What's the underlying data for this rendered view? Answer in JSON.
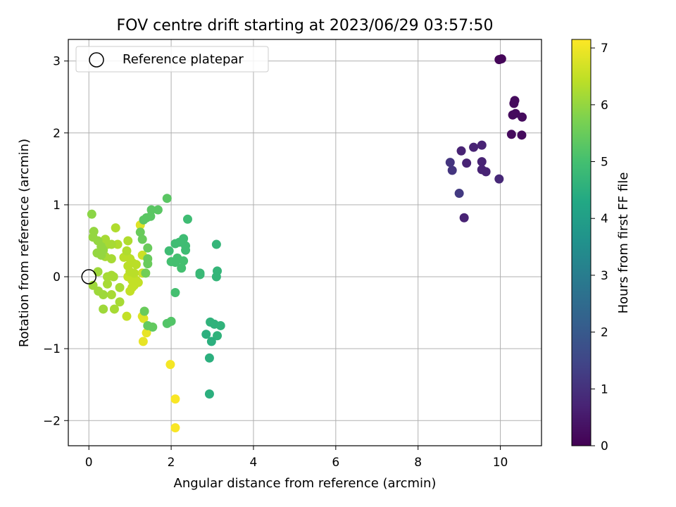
{
  "chart_data": {
    "type": "scatter",
    "title": "FOV centre drift starting at 2023/06/29 03:57:50",
    "xlabel": "Angular distance from reference (arcmin)",
    "ylabel": "Rotation from reference (arcmin)",
    "xlim": [
      -0.5,
      11.0
    ],
    "ylim": [
      -2.35,
      3.3
    ],
    "xticks": [
      0,
      2,
      4,
      6,
      8,
      10
    ],
    "yticks": [
      -2,
      -1,
      0,
      1,
      2,
      3
    ],
    "xtick_labels": [
      "0",
      "2",
      "4",
      "6",
      "8",
      "10"
    ],
    "ytick_labels": [
      "−2",
      "−1",
      "0",
      "1",
      "2",
      "3"
    ],
    "grid": true,
    "legend": {
      "position": "top-left",
      "entries": [
        "Reference platepar"
      ]
    },
    "reference_point": {
      "x": 0,
      "y": 0,
      "label": "Reference platepar",
      "marker": "open-circle"
    },
    "colorbar": {
      "label": "Hours from first FF file",
      "colormap": "viridis",
      "range": [
        0,
        7.15
      ],
      "ticks": [
        0,
        1,
        2,
        3,
        4,
        5,
        6,
        7
      ],
      "tick_labels": [
        "0",
        "1",
        "2",
        "3",
        "4",
        "5",
        "6",
        "7"
      ]
    },
    "series": [
      {
        "points": [
          {
            "x": 9.97,
            "y": 3.02,
            "c": 0.1
          },
          {
            "x": 10.03,
            "y": 3.03,
            "c": 0.1
          },
          {
            "x": 10.35,
            "y": 2.45,
            "c": 0.2
          },
          {
            "x": 10.33,
            "y": 2.41,
            "c": 0.2
          },
          {
            "x": 10.3,
            "y": 2.25,
            "c": 0.2
          },
          {
            "x": 10.37,
            "y": 2.27,
            "c": 0.2
          },
          {
            "x": 10.53,
            "y": 2.22,
            "c": 0.2
          },
          {
            "x": 10.27,
            "y": 1.98,
            "c": 0.2
          },
          {
            "x": 10.52,
            "y": 1.97,
            "c": 0.2
          },
          {
            "x": 9.35,
            "y": 1.8,
            "c": 0.7
          },
          {
            "x": 9.55,
            "y": 1.83,
            "c": 0.7
          },
          {
            "x": 9.05,
            "y": 1.75,
            "c": 0.7
          },
          {
            "x": 9.55,
            "y": 1.6,
            "c": 0.7
          },
          {
            "x": 9.55,
            "y": 1.49,
            "c": 0.7
          },
          {
            "x": 9.65,
            "y": 1.46,
            "c": 0.7
          },
          {
            "x": 9.18,
            "y": 1.58,
            "c": 0.7
          },
          {
            "x": 9.97,
            "y": 1.36,
            "c": 0.8
          },
          {
            "x": 9.12,
            "y": 0.82,
            "c": 0.7
          },
          {
            "x": 8.78,
            "y": 1.59,
            "c": 1.1
          },
          {
            "x": 8.83,
            "y": 1.48,
            "c": 1.1
          },
          {
            "x": 9.0,
            "y": 1.16,
            "c": 1.2
          },
          {
            "x": 2.93,
            "y": -1.63,
            "c": 4.5
          },
          {
            "x": 2.93,
            "y": -1.13,
            "c": 4.5
          },
          {
            "x": 2.85,
            "y": -0.8,
            "c": 4.5
          },
          {
            "x": 2.98,
            "y": -0.9,
            "c": 4.5
          },
          {
            "x": 2.95,
            "y": -0.63,
            "c": 4.6
          },
          {
            "x": 3.05,
            "y": -0.66,
            "c": 4.6
          },
          {
            "x": 3.2,
            "y": -0.68,
            "c": 4.6
          },
          {
            "x": 3.12,
            "y": -0.82,
            "c": 4.6
          },
          {
            "x": 3.12,
            "y": 0.08,
            "c": 4.7
          },
          {
            "x": 3.1,
            "y": 0.0,
            "c": 4.7
          },
          {
            "x": 3.1,
            "y": 0.45,
            "c": 4.7
          },
          {
            "x": 2.7,
            "y": 0.05,
            "c": 4.8
          },
          {
            "x": 2.7,
            "y": 0.03,
            "c": 4.8
          },
          {
            "x": 2.4,
            "y": 0.8,
            "c": 4.9
          },
          {
            "x": 2.35,
            "y": 0.43,
            "c": 4.9
          },
          {
            "x": 2.3,
            "y": 0.53,
            "c": 4.9
          },
          {
            "x": 2.2,
            "y": 0.48,
            "c": 4.9
          },
          {
            "x": 2.1,
            "y": 0.46,
            "c": 4.9
          },
          {
            "x": 2.35,
            "y": 0.37,
            "c": 4.9
          },
          {
            "x": 1.95,
            "y": 0.36,
            "c": 4.9
          },
          {
            "x": 2.3,
            "y": 0.22,
            "c": 5.0
          },
          {
            "x": 2.15,
            "y": 0.26,
            "c": 5.0
          },
          {
            "x": 2.0,
            "y": 0.21,
            "c": 5.0
          },
          {
            "x": 2.1,
            "y": 0.2,
            "c": 5.0
          },
          {
            "x": 2.25,
            "y": 0.12,
            "c": 5.0
          },
          {
            "x": 2.1,
            "y": -0.22,
            "c": 5.0
          },
          {
            "x": 1.9,
            "y": 1.09,
            "c": 5.3
          },
          {
            "x": 1.68,
            "y": 0.93,
            "c": 5.3
          },
          {
            "x": 1.52,
            "y": 0.93,
            "c": 5.3
          },
          {
            "x": 1.5,
            "y": 0.84,
            "c": 5.3
          },
          {
            "x": 1.4,
            "y": 0.82,
            "c": 5.3
          },
          {
            "x": 1.33,
            "y": 0.79,
            "c": 5.3
          },
          {
            "x": 1.9,
            "y": -0.65,
            "c": 5.2
          },
          {
            "x": 2.0,
            "y": -0.62,
            "c": 5.2
          },
          {
            "x": 1.55,
            "y": -0.7,
            "c": 5.4
          },
          {
            "x": 1.43,
            "y": -0.68,
            "c": 5.4
          },
          {
            "x": 1.35,
            "y": -0.48,
            "c": 5.5
          },
          {
            "x": 1.43,
            "y": 0.4,
            "c": 5.5
          },
          {
            "x": 1.25,
            "y": 0.62,
            "c": 5.5
          },
          {
            "x": 1.3,
            "y": 0.52,
            "c": 5.5
          },
          {
            "x": 1.43,
            "y": 0.25,
            "c": 5.5
          },
          {
            "x": 1.43,
            "y": 0.18,
            "c": 5.5
          },
          {
            "x": 1.38,
            "y": 0.05,
            "c": 5.6
          },
          {
            "x": 0.07,
            "y": 0.87,
            "c": 5.9
          },
          {
            "x": 0.12,
            "y": 0.63,
            "c": 6.0
          },
          {
            "x": 0.1,
            "y": 0.55,
            "c": 6.0
          },
          {
            "x": 0.22,
            "y": 0.5,
            "c": 6.0
          },
          {
            "x": 0.3,
            "y": 0.42,
            "c": 6.0
          },
          {
            "x": 0.35,
            "y": 0.37,
            "c": 6.0
          },
          {
            "x": 0.3,
            "y": 0.3,
            "c": 6.0
          },
          {
            "x": 0.2,
            "y": 0.33,
            "c": 6.0
          },
          {
            "x": 0.22,
            "y": 0.07,
            "c": 6.1
          },
          {
            "x": 0.1,
            "y": -0.12,
            "c": 6.1
          },
          {
            "x": 0.23,
            "y": -0.2,
            "c": 6.1
          },
          {
            "x": 0.35,
            "y": -0.25,
            "c": 6.1
          },
          {
            "x": 0.35,
            "y": -0.45,
            "c": 6.1
          },
          {
            "x": 0.45,
            "y": -0.1,
            "c": 6.2
          },
          {
            "x": 0.45,
            "y": 0.0,
            "c": 6.2
          },
          {
            "x": 0.55,
            "y": 0.02,
            "c": 6.2
          },
          {
            "x": 0.6,
            "y": 0.0,
            "c": 6.2
          },
          {
            "x": 0.55,
            "y": -0.25,
            "c": 6.2
          },
          {
            "x": 0.62,
            "y": -0.45,
            "c": 6.2
          },
          {
            "x": 0.75,
            "y": -0.35,
            "c": 6.2
          },
          {
            "x": 0.75,
            "y": -0.15,
            "c": 6.2
          },
          {
            "x": 0.55,
            "y": 0.25,
            "c": 6.2
          },
          {
            "x": 0.4,
            "y": 0.28,
            "c": 6.2
          },
          {
            "x": 0.4,
            "y": 0.52,
            "c": 6.2
          },
          {
            "x": 0.45,
            "y": 0.45,
            "c": 6.2
          },
          {
            "x": 0.55,
            "y": 0.45,
            "c": 6.2
          },
          {
            "x": 0.65,
            "y": 0.68,
            "c": 6.3
          },
          {
            "x": 0.7,
            "y": 0.45,
            "c": 6.3
          },
          {
            "x": 0.92,
            "y": 0.36,
            "c": 6.3
          },
          {
            "x": 0.95,
            "y": 0.5,
            "c": 6.3
          },
          {
            "x": 0.93,
            "y": 0.28,
            "c": 6.4
          },
          {
            "x": 0.85,
            "y": 0.27,
            "c": 6.4
          },
          {
            "x": 1.0,
            "y": 0.25,
            "c": 6.4
          },
          {
            "x": 1.05,
            "y": 0.2,
            "c": 6.4
          },
          {
            "x": 0.95,
            "y": 0.15,
            "c": 6.4
          },
          {
            "x": 1.15,
            "y": 0.17,
            "c": 6.4
          },
          {
            "x": 1.0,
            "y": 0.07,
            "c": 6.4
          },
          {
            "x": 1.1,
            "y": 0.05,
            "c": 6.4
          },
          {
            "x": 0.95,
            "y": 0.0,
            "c": 6.5
          },
          {
            "x": 1.05,
            "y": -0.05,
            "c": 6.5
          },
          {
            "x": 1.15,
            "y": -0.05,
            "c": 6.5
          },
          {
            "x": 1.2,
            "y": -0.08,
            "c": 6.5
          },
          {
            "x": 1.1,
            "y": -0.12,
            "c": 6.5
          },
          {
            "x": 1.0,
            "y": -0.2,
            "c": 6.5
          },
          {
            "x": 1.05,
            "y": -0.15,
            "c": 6.5
          },
          {
            "x": 0.92,
            "y": -0.55,
            "c": 6.5
          },
          {
            "x": 1.3,
            "y": 0.05,
            "c": 6.6
          },
          {
            "x": 1.3,
            "y": 0.3,
            "c": 6.6
          },
          {
            "x": 1.25,
            "y": 0.72,
            "c": 6.8
          },
          {
            "x": 1.3,
            "y": -0.55,
            "c": 6.8
          },
          {
            "x": 1.33,
            "y": -0.58,
            "c": 6.8
          },
          {
            "x": 1.4,
            "y": -0.78,
            "c": 6.9
          },
          {
            "x": 1.32,
            "y": -0.9,
            "c": 6.9
          },
          {
            "x": 1.98,
            "y": -1.22,
            "c": 7.05
          },
          {
            "x": 2.1,
            "y": -1.7,
            "c": 7.1
          },
          {
            "x": 2.1,
            "y": -2.1,
            "c": 7.1
          }
        ]
      }
    ]
  }
}
